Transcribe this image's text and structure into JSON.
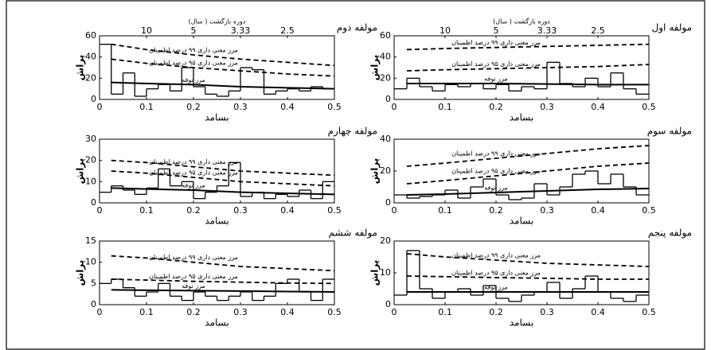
{
  "chart_data": [
    {
      "type": "spectrum",
      "title": "مولفه اول",
      "xlabel": "بسامد",
      "ylabel": "پراش",
      "x2label": "دوره بازگشت ( سال)",
      "xlim": [
        0,
        0.5
      ],
      "xticks": [
        0,
        0.1,
        0.2,
        0.3,
        0.4,
        0.5
      ],
      "ylim": [
        0,
        60
      ],
      "yticks": [
        0,
        20,
        40,
        60
      ],
      "x2ticks": [
        {
          "value": 0.1,
          "label": "10"
        },
        {
          "value": 0.2,
          "label": "5"
        },
        {
          "value": 0.3,
          "label": "3.33"
        },
        {
          "value": 0.4,
          "label": "2.5"
        }
      ],
      "series": [
        {
          "color": "#000000",
          "step": true,
          "x": [
            0.025,
            0.05,
            0.075,
            0.1,
            0.125,
            0.15,
            0.175,
            0.2,
            0.225,
            0.25,
            0.275,
            0.3,
            0.325,
            0.35,
            0.375,
            0.4,
            0.425,
            0.45,
            0.475,
            0.5
          ],
          "values": [
            10,
            20,
            12,
            8,
            14,
            12,
            15,
            10,
            14,
            8,
            12,
            10,
            35,
            15,
            12,
            20,
            12,
            25,
            10,
            5
          ]
        },
        {
          "name": "مرز معنی داری ۹۹ درصد اطمینان",
          "color": "#000000",
          "dashed": true,
          "x": [
            0.025,
            0.1,
            0.2,
            0.3,
            0.4,
            0.5
          ],
          "values": [
            47,
            48,
            49,
            50,
            51,
            52
          ]
        },
        {
          "name": "مرز معنی داری ۹۵ درصد اطمینان",
          "color": "#000000",
          "dashed": true,
          "x": [
            0.025,
            0.1,
            0.2,
            0.3,
            0.4,
            0.5
          ],
          "values": [
            27,
            28,
            29,
            30,
            31,
            33
          ]
        },
        {
          "name": "مرز نوفه",
          "color": "#000000",
          "x": [
            0.025,
            0.1,
            0.2,
            0.3,
            0.4,
            0.5
          ],
          "values": [
            15,
            15,
            15,
            14.5,
            14,
            14
          ]
        }
      ]
    },
    {
      "type": "spectrum",
      "title": "مولفه دوم",
      "xlabel": "بسامد",
      "ylabel": "پراش",
      "x2label": "دوره بازگشت ( سال)",
      "xlim": [
        0,
        0.5
      ],
      "xticks": [
        0,
        0.1,
        0.2,
        0.3,
        0.4,
        0.5
      ],
      "ylim": [
        0,
        60
      ],
      "yticks": [
        0,
        20,
        40,
        60
      ],
      "x2ticks": [
        {
          "value": 0.1,
          "label": "10"
        },
        {
          "value": 0.2,
          "label": "5"
        },
        {
          "value": 0.3,
          "label": "3.33"
        },
        {
          "value": 0.4,
          "label": "2.5"
        }
      ],
      "series": [
        {
          "color": "#000000",
          "step": true,
          "x": [
            0.025,
            0.05,
            0.075,
            0.1,
            0.125,
            0.15,
            0.175,
            0.2,
            0.225,
            0.25,
            0.275,
            0.3,
            0.325,
            0.35,
            0.375,
            0.4,
            0.425,
            0.45,
            0.475,
            0.5
          ],
          "values": [
            52,
            5,
            25,
            3,
            10,
            14,
            8,
            30,
            12,
            5,
            3,
            8,
            30,
            28,
            5,
            8,
            10,
            8,
            12,
            10
          ]
        },
        {
          "name": "مرز معنی داری ۹۹ درصد اطمینان",
          "color": "#000000",
          "dashed": true,
          "x": [
            0.025,
            0.1,
            0.2,
            0.3,
            0.4,
            0.5
          ],
          "values": [
            52,
            47,
            42,
            38,
            35,
            32
          ]
        },
        {
          "name": "مرز معنی داری ۹۵ درصد اطمینان",
          "color": "#000000",
          "dashed": true,
          "x": [
            0.025,
            0.1,
            0.2,
            0.3,
            0.4,
            0.5
          ],
          "values": [
            38,
            34,
            30,
            27,
            24,
            22
          ]
        },
        {
          "name": "مرز نوفه",
          "color": "#000000",
          "x": [
            0.025,
            0.1,
            0.2,
            0.3,
            0.4,
            0.5
          ],
          "values": [
            16,
            15,
            14,
            12,
            11,
            10
          ]
        }
      ]
    },
    {
      "type": "spectrum",
      "title": "مولفه سوم",
      "xlabel": "بسامد",
      "ylabel": "پراش",
      "xlim": [
        0,
        0.5
      ],
      "xticks": [
        0,
        0.1,
        0.2,
        0.3,
        0.4,
        0.5
      ],
      "ylim": [
        0,
        40
      ],
      "yticks": [
        0,
        20,
        40
      ],
      "series": [
        {
          "color": "#000000",
          "step": true,
          "x": [
            0.025,
            0.05,
            0.075,
            0.1,
            0.125,
            0.15,
            0.175,
            0.2,
            0.225,
            0.25,
            0.275,
            0.3,
            0.325,
            0.35,
            0.375,
            0.4,
            0.425,
            0.45,
            0.475,
            0.5
          ],
          "values": [
            5,
            3,
            4,
            5,
            8,
            3,
            10,
            15,
            5,
            2,
            3,
            12,
            5,
            10,
            18,
            20,
            12,
            18,
            10,
            5
          ]
        },
        {
          "name": "مرز معنی داری ۹۹ درصد اطمینان",
          "color": "#000000",
          "dashed": true,
          "x": [
            0.025,
            0.1,
            0.2,
            0.3,
            0.4,
            0.5
          ],
          "values": [
            23,
            25,
            28,
            31,
            34,
            36
          ]
        },
        {
          "name": "مرز معنی داری ۹۵ درصد اطمینان",
          "color": "#000000",
          "dashed": true,
          "x": [
            0.025,
            0.1,
            0.2,
            0.3,
            0.4,
            0.5
          ],
          "values": [
            12,
            14,
            17,
            20,
            23,
            25
          ]
        },
        {
          "name": "مرز نوفه",
          "color": "#000000",
          "x": [
            0.025,
            0.1,
            0.2,
            0.3,
            0.4,
            0.5
          ],
          "values": [
            5,
            5.5,
            6.5,
            7.5,
            8.5,
            9
          ]
        }
      ]
    },
    {
      "type": "spectrum",
      "title": "مولفه چهارم",
      "xlabel": "بسامد",
      "ylabel": "پراش",
      "xlim": [
        0,
        0.5
      ],
      "xticks": [
        0,
        0.1,
        0.2,
        0.3,
        0.4,
        0.5
      ],
      "ylim": [
        0,
        30
      ],
      "yticks": [
        0,
        10,
        20,
        30
      ],
      "series": [
        {
          "color": "#000000",
          "step": true,
          "x": [
            0.025,
            0.05,
            0.075,
            0.1,
            0.125,
            0.15,
            0.175,
            0.2,
            0.225,
            0.25,
            0.275,
            0.3,
            0.325,
            0.35,
            0.375,
            0.4,
            0.425,
            0.45,
            0.475,
            0.5
          ],
          "values": [
            5,
            8,
            6,
            4,
            7,
            16,
            8,
            10,
            2,
            5,
            8,
            19,
            3,
            5,
            2,
            4,
            3,
            6,
            2,
            10
          ]
        },
        {
          "name": "مرز معنی داری ۹۹ درصد اطمینان",
          "color": "#000000",
          "dashed": true,
          "x": [
            0.025,
            0.1,
            0.2,
            0.3,
            0.4,
            0.5
          ],
          "values": [
            20,
            19,
            17,
            15,
            14,
            13
          ]
        },
        {
          "name": "مرز معنی داری ۹۵ درصد اطمینان",
          "color": "#000000",
          "dashed": true,
          "x": [
            0.025,
            0.1,
            0.2,
            0.3,
            0.4,
            0.5
          ],
          "values": [
            15,
            14,
            12,
            10,
            9,
            8
          ]
        },
        {
          "name": "مرز نوفه",
          "color": "#000000",
          "x": [
            0.025,
            0.1,
            0.2,
            0.3,
            0.4,
            0.5
          ],
          "values": [
            7,
            6.5,
            6,
            5,
            4.5,
            4
          ]
        }
      ]
    },
    {
      "type": "spectrum",
      "title": "مولفه پنجم",
      "xlabel": "بسامد",
      "ylabel": "پراش",
      "xlim": [
        0,
        0.5
      ],
      "xticks": [
        0,
        0.1,
        0.2,
        0.3,
        0.4,
        0.5
      ],
      "ylim": [
        0,
        20
      ],
      "yticks": [
        0,
        10,
        20
      ],
      "series": [
        {
          "color": "#000000",
          "step": true,
          "x": [
            0.025,
            0.05,
            0.075,
            0.1,
            0.125,
            0.15,
            0.175,
            0.2,
            0.225,
            0.25,
            0.275,
            0.3,
            0.325,
            0.35,
            0.375,
            0.4,
            0.425,
            0.45,
            0.475,
            0.5
          ],
          "values": [
            3,
            17,
            5,
            2,
            4,
            5,
            3,
            6,
            2,
            1,
            3,
            4,
            7,
            2,
            5,
            9,
            4,
            2,
            1,
            3
          ]
        },
        {
          "name": "مرز معنی داری ۹۹ درصد اطمینان",
          "color": "#000000",
          "dashed": true,
          "x": [
            0.025,
            0.1,
            0.2,
            0.3,
            0.4,
            0.5
          ],
          "values": [
            16,
            15,
            14,
            13,
            12.5,
            12
          ]
        },
        {
          "name": "مرز معنی داری ۹۵ درصد اطمینان",
          "color": "#000000",
          "dashed": true,
          "x": [
            0.025,
            0.1,
            0.2,
            0.3,
            0.4,
            0.5
          ],
          "values": [
            9,
            8.8,
            8.5,
            8.3,
            8,
            8
          ]
        },
        {
          "name": "مرز نوفه",
          "color": "#000000",
          "x": [
            0.025,
            0.1,
            0.2,
            0.3,
            0.4,
            0.5
          ],
          "values": [
            4,
            4,
            4,
            4,
            4,
            4
          ]
        }
      ]
    },
    {
      "type": "spectrum",
      "title": "مولفه ششم",
      "xlabel": "بسامد",
      "ylabel": "پراش",
      "xlim": [
        0,
        0.5
      ],
      "xticks": [
        0,
        0.1,
        0.2,
        0.3,
        0.4,
        0.5
      ],
      "ylim": [
        0,
        15
      ],
      "yticks": [
        0,
        5,
        10,
        15
      ],
      "series": [
        {
          "color": "#000000",
          "step": true,
          "x": [
            0.025,
            0.05,
            0.075,
            0.1,
            0.125,
            0.15,
            0.175,
            0.2,
            0.225,
            0.25,
            0.275,
            0.3,
            0.325,
            0.35,
            0.375,
            0.4,
            0.425,
            0.45,
            0.475,
            0.5
          ],
          "values": [
            5,
            6,
            4,
            2,
            3,
            5,
            2,
            1,
            3,
            2,
            1,
            2,
            3,
            1,
            2,
            5,
            6,
            3,
            1,
            6
          ]
        },
        {
          "name": "مرز معنی داری ۹۹ درصد اطمینان",
          "color": "#000000",
          "dashed": true,
          "x": [
            0.025,
            0.1,
            0.2,
            0.3,
            0.4,
            0.5
          ],
          "values": [
            11.5,
            11,
            10,
            9,
            8.5,
            8
          ]
        },
        {
          "name": "مرز معنی داری ۹۵ درصد اطمینان",
          "color": "#000000",
          "dashed": true,
          "x": [
            0.025,
            0.1,
            0.2,
            0.3,
            0.4,
            0.5
          ],
          "values": [
            6,
            5.8,
            5.5,
            5.3,
            5.1,
            5
          ]
        },
        {
          "name": "مرز نوفه",
          "color": "#000000",
          "x": [
            0.025,
            0.1,
            0.2,
            0.3,
            0.4,
            0.5
          ],
          "values": [
            3.5,
            3.4,
            3.3,
            3.2,
            3.1,
            3
          ]
        }
      ]
    }
  ]
}
